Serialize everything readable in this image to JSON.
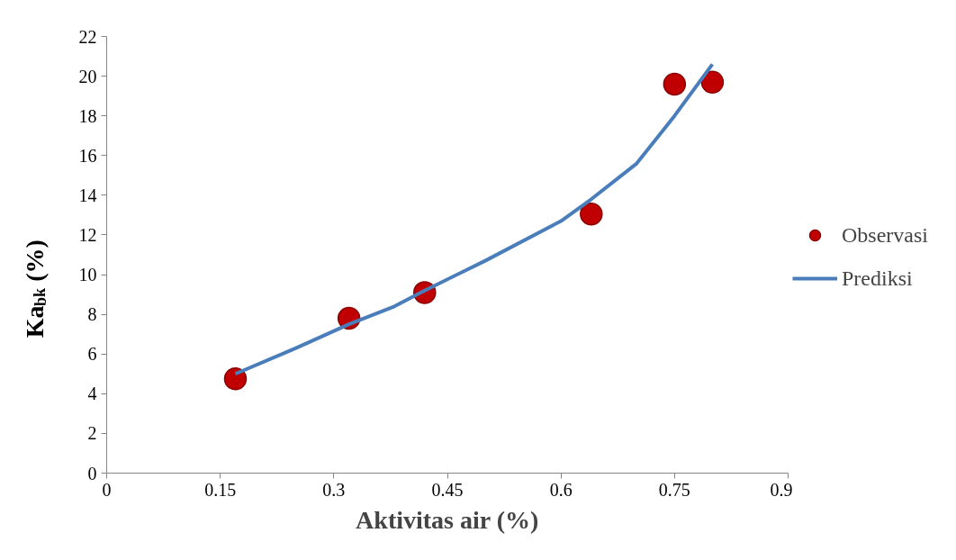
{
  "chart_data": {
    "type": "scatter",
    "xlabel": "Aktivitas air (%)",
    "ylabel": "Ka$_{bk}$ (%)",
    "xlim": [
      0,
      0.9
    ],
    "xticks": [
      0,
      0.15,
      0.3,
      0.45,
      0.6,
      0.75,
      0.9
    ],
    "ylim": [
      0,
      22
    ],
    "yticks": [
      0,
      2,
      4,
      6,
      8,
      10,
      12,
      14,
      16,
      18,
      20,
      22
    ],
    "grid": false,
    "legend": "right",
    "series": [
      {
        "name": "Observasi",
        "type": "scatter",
        "marker": "circle",
        "color": "#c00000",
        "x": [
          0.17,
          0.32,
          0.42,
          0.64,
          0.75,
          0.8
        ],
        "values": [
          4.75,
          7.8,
          9.1,
          13.05,
          19.6,
          19.7
        ]
      },
      {
        "name": "Prediksi",
        "type": "line",
        "marker": "none",
        "line_style": "solid",
        "color": "#4a7ebb",
        "x": [
          0.17,
          0.25,
          0.32,
          0.38,
          0.42,
          0.5,
          0.6,
          0.64,
          0.7,
          0.75,
          0.8
        ],
        "values": [
          5.0,
          6.3,
          7.5,
          8.4,
          9.2,
          10.7,
          12.7,
          13.8,
          15.6,
          18.0,
          20.6
        ]
      }
    ]
  }
}
